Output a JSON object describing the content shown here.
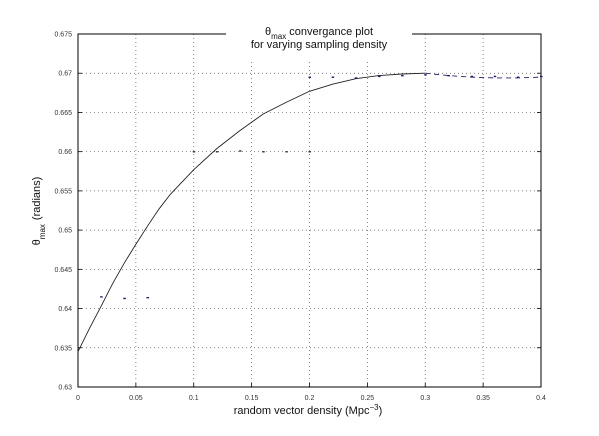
{
  "chart_data": {
    "type": "line",
    "title_line1_symbol": "θ",
    "title_line1_sub": "max",
    "title_line1_rest": " convergance plot",
    "title_line2": "for varying sampling density",
    "xlabel_text": "random vector density (Mpc",
    "xlabel_sup": "−3",
    "xlabel_close": ")",
    "ylabel_symbol": "θ",
    "ylabel_sub": "max",
    "ylabel_rest": "(radians)",
    "xlim": [
      0,
      0.4
    ],
    "ylim": [
      0.63,
      0.675
    ],
    "xticks": [
      0,
      0.05,
      0.1,
      0.15,
      0.2,
      0.25,
      0.3,
      0.35,
      0.4
    ],
    "xtick_labels": [
      "0",
      "0.05",
      "0.1",
      "0.15",
      "0.2",
      "0.25",
      "0.3",
      "0.35",
      "0.4"
    ],
    "yticks": [
      0.63,
      0.635,
      0.64,
      0.645,
      0.65,
      0.655,
      0.66,
      0.665,
      0.67,
      0.675
    ],
    "ytick_labels": [
      "0.63",
      "0.635",
      "0.64",
      "0.645",
      "0.65",
      "0.655",
      "0.66",
      "0.665",
      "0.67",
      "0.675"
    ],
    "grid": true,
    "series": [
      {
        "style": "solid",
        "color": "#222222",
        "x": [
          0,
          0.01,
          0.02,
          0.03,
          0.04,
          0.05,
          0.06,
          0.07,
          0.08,
          0.1,
          0.12,
          0.14,
          0.16,
          0.18,
          0.2,
          0.22,
          0.24,
          0.26,
          0.28,
          0.3
        ],
        "y": [
          0.6345,
          0.6375,
          0.6403,
          0.6432,
          0.6458,
          0.6482,
          0.6505,
          0.6527,
          0.6546,
          0.6577,
          0.6604,
          0.6627,
          0.6648,
          0.6663,
          0.6677,
          0.6686,
          0.6693,
          0.6697,
          0.6699,
          0.67
        ]
      },
      {
        "style": "dashed",
        "color": "#222266",
        "x": [
          0.3,
          0.32,
          0.34,
          0.36,
          0.38,
          0.4
        ],
        "y": [
          0.67,
          0.6697,
          0.6695,
          0.6694,
          0.6694,
          0.6695
        ]
      },
      {
        "style": "points",
        "color": "#1a1a66",
        "x": [
          0.02,
          0.04,
          0.06,
          0.2,
          0.22,
          0.24,
          0.26,
          0.28,
          0.3,
          0.32,
          0.34,
          0.36,
          0.38,
          0.4
        ],
        "y": [
          0.6415,
          0.6413,
          0.6414,
          0.6695,
          0.6695,
          0.6694,
          0.6696,
          0.6697,
          0.6698,
          0.6697,
          0.6696,
          0.6696,
          0.6695,
          0.6696
        ]
      },
      {
        "style": "points",
        "color": "#333333",
        "x": [
          0.1,
          0.12,
          0.14,
          0.16,
          0.18,
          0.2
        ],
        "y": [
          0.66,
          0.66,
          0.6601,
          0.66,
          0.66,
          0.66
        ]
      }
    ]
  }
}
